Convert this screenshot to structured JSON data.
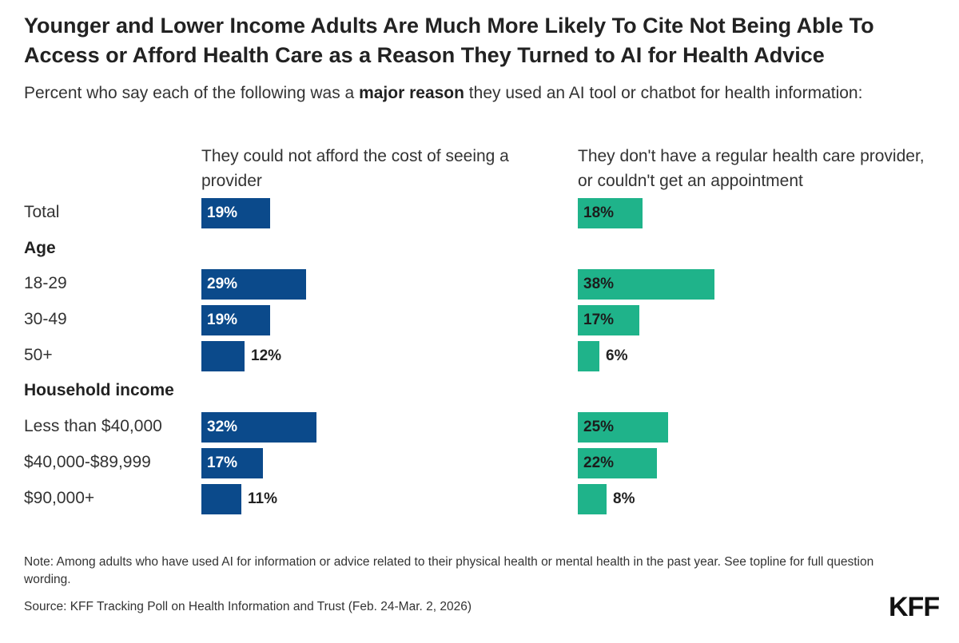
{
  "title": "Younger and Lower Income Adults Are Much More Likely To Cite Not Being Able To Access or Afford Health Care as a Reason They Turned to AI for Health Advice",
  "subtitle_pre": "Percent who say each of the following was a ",
  "subtitle_bold": "major reason",
  "subtitle_post": " they used an AI tool or chatbot for health information:",
  "note": "Note: Among adults who have used AI for information or advice related to their physical health or mental health in the past year. See topline for full question wording.",
  "source": "Source: KFF Tracking Poll on Health Information and Trust (Feb. 24-Mar. 2, 2026)",
  "logo": "KFF",
  "colors": {
    "series1": "#0b4a8b",
    "series2": "#1fb38a"
  },
  "chart_data": {
    "type": "bar",
    "orientation": "horizontal",
    "unit": "%",
    "rows": [
      {
        "label": "Total",
        "kind": "category"
      },
      {
        "label": "Age",
        "kind": "group"
      },
      {
        "label": "18-29",
        "kind": "category"
      },
      {
        "label": "30-49",
        "kind": "category"
      },
      {
        "label": "50+",
        "kind": "category"
      },
      {
        "label": "Household income",
        "kind": "group"
      },
      {
        "label": "Less than $40,000",
        "kind": "category"
      },
      {
        "label": "$40,000-$89,999",
        "kind": "category"
      },
      {
        "label": "$90,000+",
        "kind": "category"
      }
    ],
    "categories": [
      "Total",
      "18-29",
      "30-49",
      "50+",
      "Less than $40,000",
      "$40,000-$89,999",
      "$90,000+"
    ],
    "series": [
      {
        "name": "They could not afford the cost of seeing a provider",
        "color": "#0b4a8b",
        "values": [
          19,
          29,
          19,
          12,
          32,
          17,
          11
        ]
      },
      {
        "name": "They don't have a regular health care provider, or couldn't get an appointment",
        "color": "#1fb38a",
        "values": [
          18,
          38,
          17,
          6,
          25,
          22,
          8
        ]
      }
    ]
  }
}
